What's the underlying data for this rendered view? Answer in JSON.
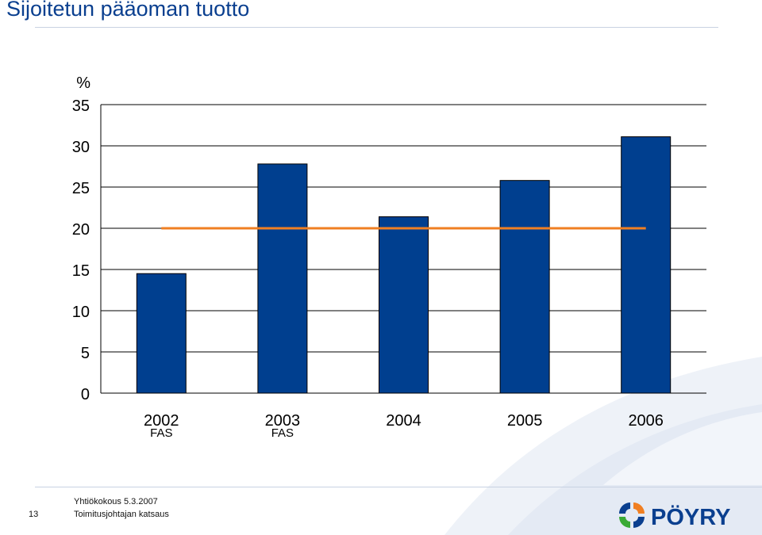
{
  "title": "Sijoitetun pääoman tuotto",
  "footer": {
    "page_number": "13",
    "line1": "Yhtiökokous 5.3.2007",
    "line2": "Toimitusjohtajan katsaus"
  },
  "logo": {
    "text": "PÖYRY"
  },
  "colors": {
    "title": "#0a3f8f",
    "bar": "#003f8f",
    "bar_outline": "#000000",
    "target_line": "#f07f22",
    "logo_blue": "#0a3f8f",
    "logo_green": "#3aaa35",
    "logo_orange": "#f07f22"
  },
  "chart_data": {
    "type": "bar",
    "title": "",
    "ylabel": "%",
    "xlabel": "",
    "categories": [
      "2002",
      "2003",
      "2004",
      "2005",
      "2006"
    ],
    "category_sublabels": [
      "FAS",
      "FAS",
      "",
      "",
      ""
    ],
    "series": [
      {
        "values": [
          14.5,
          27.8,
          21.4,
          25.8,
          31.1
        ]
      }
    ],
    "reference_line": {
      "value": 20
    },
    "ylim": [
      0,
      35
    ],
    "yticks": [
      0,
      5,
      10,
      15,
      20,
      25,
      30,
      35
    ],
    "grid": true,
    "legend": "none"
  }
}
